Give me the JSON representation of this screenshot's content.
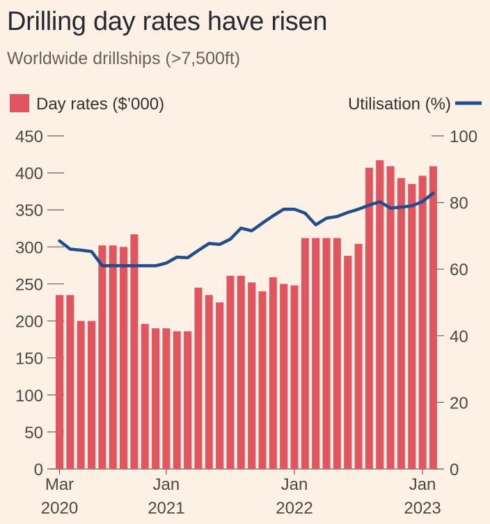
{
  "title": "Drilling day rates have risen",
  "subtitle": "Worldwide drillships (>7,500ft)",
  "colors": {
    "bar": "#e0555f",
    "line": "#1f4e8c",
    "background": "#fdf1e5",
    "axis": "#66605c"
  },
  "chart_data": {
    "type": "bar",
    "title": "Drilling day rates have risen",
    "subtitle": "Worldwide drillships (>7,500ft)",
    "legend": {
      "bar_label": "Day rates ($’000)",
      "line_label": "Utilisation (%)",
      "placement": "top"
    },
    "y_left": {
      "ticks": [
        "0",
        "50",
        "100",
        "150",
        "200",
        "250",
        "300",
        "350",
        "400",
        "450"
      ],
      "range": [
        0,
        450
      ]
    },
    "y_right": {
      "ticks": [
        "0",
        "20",
        "40",
        "60",
        "80",
        "100"
      ],
      "range": [
        0,
        100
      ]
    },
    "x_axis": {
      "range": [
        "Mar 2020",
        "Jan 2023"
      ],
      "tick_labels": [
        {
          "month": "Mar",
          "year": "2020",
          "index": 0
        },
        {
          "month": "Jan",
          "year": "2021",
          "index": 10
        },
        {
          "month": "Jan",
          "year": "2022",
          "index": 22
        },
        {
          "month": "Jan",
          "year": "2023",
          "index": 34
        }
      ]
    },
    "grid": false,
    "categories": [
      "2020-03",
      "2020-04",
      "2020-05",
      "2020-06",
      "2020-07",
      "2020-08",
      "2020-09",
      "2020-10",
      "2020-11",
      "2020-12",
      "2021-01",
      "2021-02",
      "2021-03",
      "2021-04",
      "2021-05",
      "2021-06",
      "2021-07",
      "2021-08",
      "2021-09",
      "2021-10",
      "2021-11",
      "2021-12",
      "2022-01",
      "2022-02",
      "2022-03",
      "2022-04",
      "2022-05",
      "2022-06",
      "2022-07",
      "2022-08",
      "2022-09",
      "2022-10",
      "2022-11",
      "2022-12",
      "2023-01",
      "2023-02"
    ],
    "series": [
      {
        "name": "Day rates ($’000)",
        "type": "bar",
        "axis": "left",
        "values": [
          235,
          235,
          200,
          200,
          302,
          302,
          300,
          317,
          196,
          190,
          190,
          186,
          186,
          245,
          235,
          225,
          261,
          261,
          252,
          240,
          259,
          250,
          248,
          312,
          312,
          312,
          312,
          288,
          304,
          407,
          417,
          409,
          393,
          385,
          396,
          409
        ]
      },
      {
        "name": "Utilisation (%)",
        "type": "line",
        "axis": "right",
        "x": [
          0,
          1,
          2,
          3,
          4,
          5,
          6,
          7,
          8,
          9,
          10,
          11,
          12,
          13,
          14,
          15,
          16,
          17,
          18,
          19,
          20,
          21,
          22,
          23,
          24,
          25,
          26,
          27,
          28,
          29,
          30,
          31,
          32,
          33,
          34,
          35
        ],
        "values": [
          68.5,
          66,
          65.7,
          65.3,
          61,
          61,
          61,
          61,
          61,
          61,
          61.8,
          63.6,
          63.4,
          65.6,
          67.7,
          67.4,
          69,
          72.3,
          71.5,
          73.8,
          76,
          78,
          78,
          76.8,
          73.3,
          75.3,
          75.8,
          77,
          78,
          79.2,
          80.2,
          78.3,
          78.6,
          79,
          80.3,
          82.8
        ]
      }
    ]
  }
}
